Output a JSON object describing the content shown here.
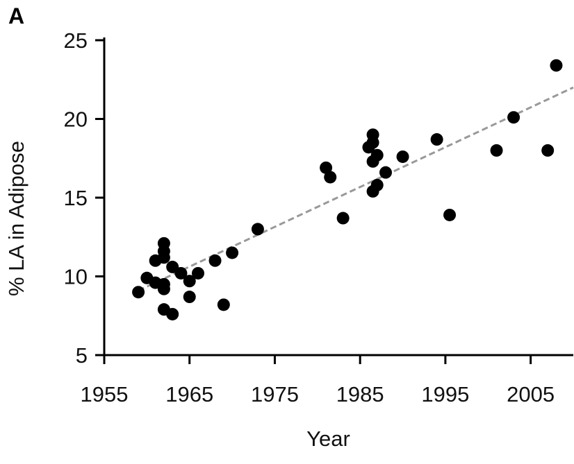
{
  "panel_label": "A",
  "chart_data": {
    "type": "scatter",
    "xlabel": "Year",
    "ylabel": "% LA in Adipose",
    "xlim": [
      1955,
      2010
    ],
    "ylim": [
      5,
      25
    ],
    "xticks": [
      1955,
      1965,
      1975,
      1985,
      1995,
      2005
    ],
    "yticks": [
      5,
      10,
      15,
      20,
      25
    ],
    "grid": false,
    "legend": "none",
    "colors": {
      "points": "#000000",
      "trendline": "#999999",
      "axes": "#000000"
    },
    "trendline": {
      "style": "dashed",
      "x": [
        1959,
        2010
      ],
      "y": [
        9.1,
        22.0
      ]
    },
    "points": [
      {
        "x": 1959,
        "y": 9.0
      },
      {
        "x": 1960,
        "y": 9.9
      },
      {
        "x": 1961,
        "y": 11.0
      },
      {
        "x": 1961,
        "y": 9.6
      },
      {
        "x": 1962,
        "y": 12.1
      },
      {
        "x": 1962,
        "y": 11.6
      },
      {
        "x": 1962,
        "y": 11.2
      },
      {
        "x": 1962,
        "y": 9.5
      },
      {
        "x": 1962,
        "y": 9.2
      },
      {
        "x": 1962,
        "y": 7.9
      },
      {
        "x": 1963,
        "y": 10.6
      },
      {
        "x": 1963,
        "y": 7.6
      },
      {
        "x": 1964,
        "y": 10.2
      },
      {
        "x": 1965,
        "y": 9.7
      },
      {
        "x": 1965,
        "y": 8.7
      },
      {
        "x": 1966,
        "y": 10.2
      },
      {
        "x": 1968,
        "y": 11.0
      },
      {
        "x": 1969,
        "y": 8.2
      },
      {
        "x": 1970,
        "y": 11.5
      },
      {
        "x": 1973,
        "y": 13.0
      },
      {
        "x": 1981,
        "y": 16.9
      },
      {
        "x": 1981.5,
        "y": 16.3
      },
      {
        "x": 1983,
        "y": 13.7
      },
      {
        "x": 1986,
        "y": 18.2
      },
      {
        "x": 1986.5,
        "y": 19.0
      },
      {
        "x": 1986.5,
        "y": 18.5
      },
      {
        "x": 1986.5,
        "y": 17.3
      },
      {
        "x": 1986.5,
        "y": 15.4
      },
      {
        "x": 1987,
        "y": 17.7
      },
      {
        "x": 1987,
        "y": 15.8
      },
      {
        "x": 1988,
        "y": 16.6
      },
      {
        "x": 1990,
        "y": 17.6
      },
      {
        "x": 1994,
        "y": 18.7
      },
      {
        "x": 1995.5,
        "y": 13.9
      },
      {
        "x": 2001,
        "y": 18.0
      },
      {
        "x": 2003,
        "y": 20.1
      },
      {
        "x": 2007,
        "y": 18.0
      },
      {
        "x": 2008,
        "y": 23.4
      }
    ]
  }
}
